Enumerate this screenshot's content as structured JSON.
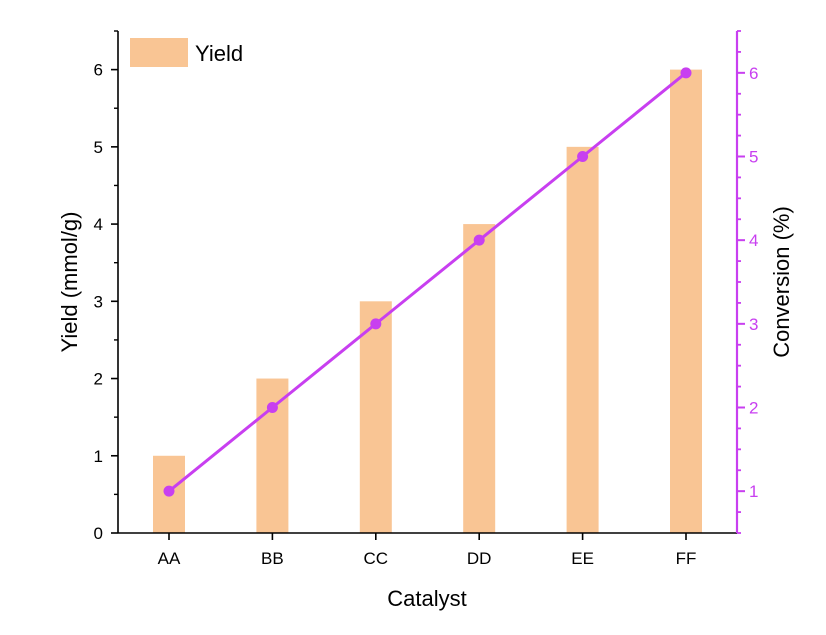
{
  "chart_data": {
    "type": "bar+line",
    "xlabel": "Catalyst",
    "categories": [
      "AA",
      "BB",
      "CC",
      "DD",
      "EE",
      "FF"
    ],
    "series": [
      {
        "name": "Yield",
        "kind": "bar",
        "axis": "left",
        "values": [
          1,
          2,
          3,
          4,
          5,
          6
        ],
        "color": "#f9c594"
      },
      {
        "name": "Conversion",
        "kind": "line",
        "axis": "right",
        "values": [
          1,
          2,
          3,
          4,
          5,
          6
        ],
        "color": "#c83ff0",
        "marker": "circle"
      }
    ],
    "left_axis": {
      "label": "Yield (mmol/g)",
      "ylim": [
        0,
        6.5
      ],
      "ticks": [
        "0",
        "1",
        "2",
        "3",
        "4",
        "5",
        "6"
      ],
      "tick_values": [
        0,
        1,
        2,
        3,
        4,
        5,
        6
      ]
    },
    "right_axis": {
      "label": "Conversion (%)",
      "ylim": [
        0.5,
        6.5
      ],
      "ticks": [
        "1",
        "2",
        "3",
        "4",
        "5",
        "6"
      ],
      "tick_values": [
        1,
        2,
        3,
        4,
        5,
        6
      ],
      "color": "#c83ff0"
    },
    "legend": {
      "position": "top-left",
      "entries": [
        "Yield"
      ]
    },
    "grid": false
  }
}
